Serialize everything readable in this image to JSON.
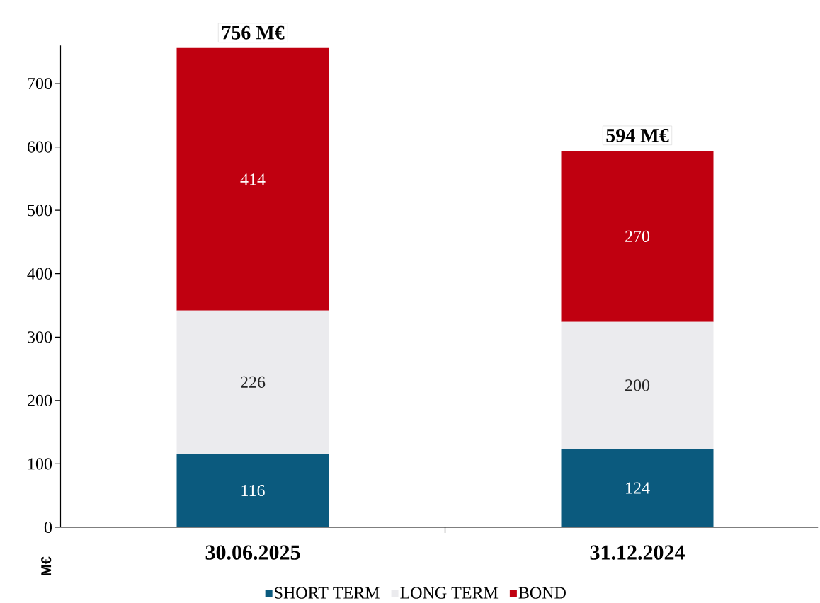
{
  "chart_data": {
    "type": "bar",
    "stacked": true,
    "ylabel": "M€",
    "categories": [
      "30.06.2025",
      "31.12.2024"
    ],
    "series": [
      {
        "name": "SHORT TERM",
        "color": "#0b5a7e",
        "values": [
          116,
          124
        ]
      },
      {
        "name": "LONG TERM",
        "color": "#ebebee",
        "values": [
          226,
          200
        ]
      },
      {
        "name": "BOND",
        "color": "#c00010",
        "values": [
          414,
          270
        ]
      }
    ],
    "ylim": [
      0,
      760
    ],
    "yticks": [
      0,
      100,
      200,
      300,
      400,
      500,
      600,
      700
    ],
    "data_labels": true,
    "totals": [
      "756 M€",
      "594 M€"
    ],
    "legend": "bottom",
    "grid": false
  }
}
